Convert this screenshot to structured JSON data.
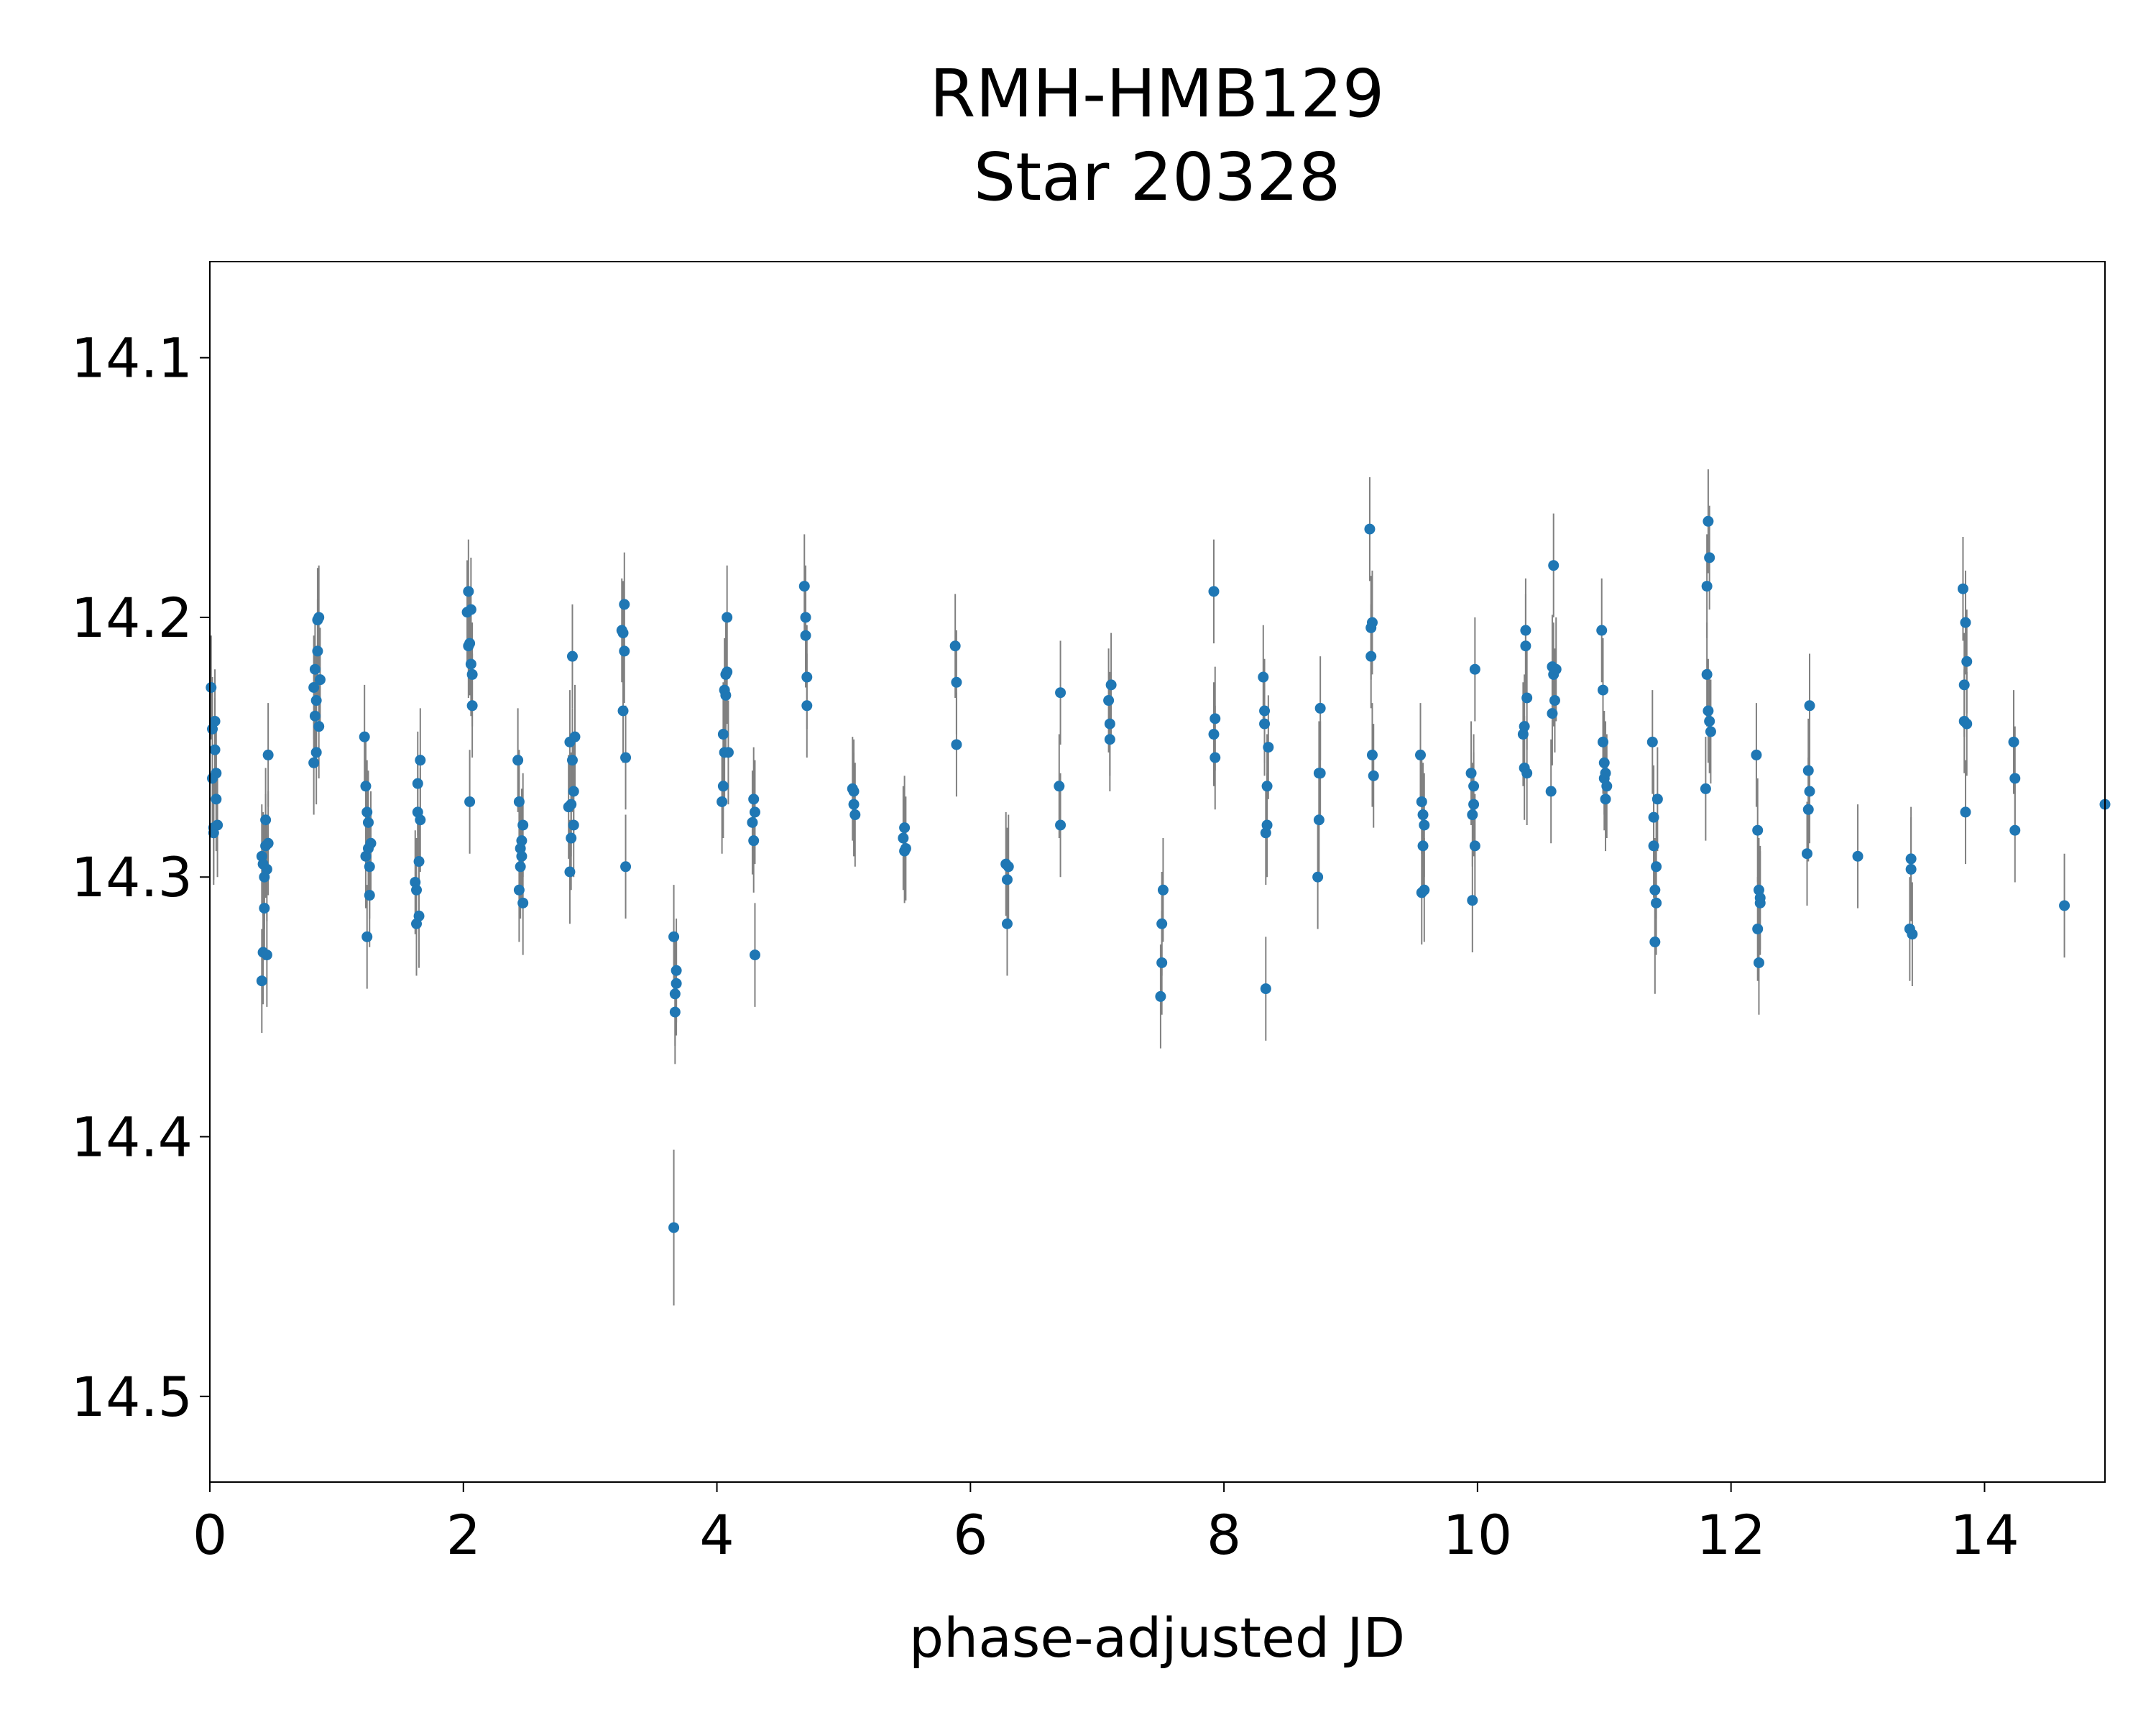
{
  "chart_data": {
    "type": "scatter",
    "title": [
      "RMH-HMB129",
      "Star 20328"
    ],
    "xlabel": "phase-adjusted JD",
    "ylabel": "",
    "xlim": [
      0,
      14.95
    ],
    "ylim": [
      14.533,
      14.063
    ],
    "y_inverted": true,
    "x_ticks": [
      0,
      2,
      4,
      6,
      8,
      10,
      12,
      14
    ],
    "x_tick_labels": [
      "0",
      "2",
      "4",
      "6",
      "8",
      "10",
      "12",
      "14"
    ],
    "y_ticks": [
      14.1,
      14.2,
      14.3,
      14.4,
      14.5
    ],
    "y_tick_labels": [
      "14.1",
      "14.2",
      "14.3",
      "14.4",
      "14.5"
    ],
    "grid": false,
    "legend": "none",
    "marker_color": "#1f77b4",
    "errorbar_color": "#808080",
    "points": [
      [
        0.01,
        14.227,
        0.02
      ],
      [
        0.02,
        14.243,
        0.02
      ],
      [
        0.02,
        14.262,
        0.02
      ],
      [
        0.03,
        14.283,
        0.02
      ],
      [
        0.03,
        14.281,
        0.02
      ],
      [
        0.04,
        14.24,
        0.02
      ],
      [
        0.04,
        14.251,
        0.02
      ],
      [
        0.05,
        14.26,
        0.02
      ],
      [
        0.05,
        14.27,
        0.02
      ],
      [
        0.06,
        14.28,
        0.02
      ],
      [
        0.41,
        14.34,
        0.02
      ],
      [
        0.41,
        14.292,
        0.02
      ],
      [
        0.42,
        14.295,
        0.02
      ],
      [
        0.42,
        14.329,
        0.02
      ],
      [
        0.43,
        14.3,
        0.02
      ],
      [
        0.43,
        14.312,
        0.02
      ],
      [
        0.44,
        14.278,
        0.02
      ],
      [
        0.44,
        14.288,
        0.02
      ],
      [
        0.45,
        14.33,
        0.02
      ],
      [
        0.45,
        14.297,
        0.02
      ],
      [
        0.46,
        14.287,
        0.02
      ],
      [
        0.46,
        14.253,
        0.02
      ],
      [
        0.82,
        14.227,
        0.02
      ],
      [
        0.82,
        14.256,
        0.02
      ],
      [
        0.83,
        14.22,
        0.02
      ],
      [
        0.83,
        14.238,
        0.02
      ],
      [
        0.84,
        14.252,
        0.02
      ],
      [
        0.84,
        14.232,
        0.02
      ],
      [
        0.85,
        14.213,
        0.02
      ],
      [
        0.85,
        14.201,
        0.02
      ],
      [
        0.86,
        14.2,
        0.02
      ],
      [
        0.86,
        14.242,
        0.02
      ],
      [
        0.87,
        14.224,
        0.02
      ],
      [
        1.22,
        14.246,
        0.02
      ],
      [
        1.23,
        14.265,
        0.02
      ],
      [
        1.23,
        14.292,
        0.02
      ],
      [
        1.24,
        14.323,
        0.02
      ],
      [
        1.24,
        14.275,
        0.02
      ],
      [
        1.25,
        14.279,
        0.02
      ],
      [
        1.25,
        14.289,
        0.02
      ],
      [
        1.26,
        14.307,
        0.02
      ],
      [
        1.26,
        14.296,
        0.02
      ],
      [
        1.27,
        14.287,
        0.02
      ],
      [
        1.62,
        14.302,
        0.02
      ],
      [
        1.63,
        14.318,
        0.02
      ],
      [
        1.63,
        14.305,
        0.02
      ],
      [
        1.64,
        14.264,
        0.02
      ],
      [
        1.64,
        14.275,
        0.02
      ],
      [
        1.65,
        14.294,
        0.02
      ],
      [
        1.65,
        14.315,
        0.02
      ],
      [
        1.66,
        14.278,
        0.02
      ],
      [
        1.66,
        14.255,
        0.02
      ],
      [
        2.03,
        14.198,
        0.02
      ],
      [
        2.04,
        14.19,
        0.02
      ],
      [
        2.04,
        14.211,
        0.02
      ],
      [
        2.05,
        14.271,
        0.02
      ],
      [
        2.05,
        14.21,
        0.02
      ],
      [
        2.06,
        14.197,
        0.02
      ],
      [
        2.06,
        14.218,
        0.02
      ],
      [
        2.07,
        14.222,
        0.02
      ],
      [
        2.07,
        14.234,
        0.02
      ],
      [
        2.43,
        14.255,
        0.02
      ],
      [
        2.44,
        14.271,
        0.02
      ],
      [
        2.44,
        14.305,
        0.02
      ],
      [
        2.45,
        14.296,
        0.02
      ],
      [
        2.45,
        14.289,
        0.02
      ],
      [
        2.46,
        14.286,
        0.02
      ],
      [
        2.46,
        14.292,
        0.02
      ],
      [
        2.47,
        14.31,
        0.02
      ],
      [
        2.47,
        14.28,
        0.02
      ],
      [
        2.83,
        14.273,
        0.02
      ],
      [
        2.84,
        14.298,
        0.02
      ],
      [
        2.84,
        14.248,
        0.02
      ],
      [
        2.85,
        14.285,
        0.02
      ],
      [
        2.85,
        14.272,
        0.02
      ],
      [
        2.86,
        14.255,
        0.02
      ],
      [
        2.86,
        14.215,
        0.02
      ],
      [
        2.87,
        14.28,
        0.02
      ],
      [
        2.87,
        14.267,
        0.02
      ],
      [
        2.88,
        14.246,
        0.02
      ],
      [
        3.25,
        14.205,
        0.02
      ],
      [
        3.26,
        14.236,
        0.02
      ],
      [
        3.26,
        14.206,
        0.02
      ],
      [
        3.27,
        14.195,
        0.02
      ],
      [
        3.27,
        14.213,
        0.02
      ],
      [
        3.28,
        14.296,
        0.02
      ],
      [
        3.28,
        14.254,
        0.02
      ],
      [
        3.66,
        14.323,
        0.02
      ],
      [
        3.67,
        14.345,
        0.02
      ],
      [
        3.67,
        14.352,
        0.02
      ],
      [
        3.68,
        14.336,
        0.02
      ],
      [
        3.68,
        14.341,
        0.02
      ],
      [
        3.66,
        14.435,
        0.03
      ],
      [
        4.04,
        14.271,
        0.02
      ],
      [
        4.05,
        14.245,
        0.02
      ],
      [
        4.05,
        14.265,
        0.02
      ],
      [
        4.06,
        14.252,
        0.02
      ],
      [
        4.06,
        14.228,
        0.02
      ],
      [
        4.07,
        14.23,
        0.02
      ],
      [
        4.07,
        14.222,
        0.02
      ],
      [
        4.08,
        14.2,
        0.02
      ],
      [
        4.08,
        14.221,
        0.02
      ],
      [
        4.09,
        14.252,
        0.02
      ],
      [
        4.28,
        14.279,
        0.02
      ],
      [
        4.29,
        14.286,
        0.02
      ],
      [
        4.29,
        14.27,
        0.02
      ],
      [
        4.3,
        14.33,
        0.02
      ],
      [
        4.3,
        14.275,
        0.02
      ],
      [
        4.69,
        14.188,
        0.02
      ],
      [
        4.7,
        14.2,
        0.02
      ],
      [
        4.7,
        14.207,
        0.02
      ],
      [
        4.71,
        14.223,
        0.02
      ],
      [
        4.71,
        14.234,
        0.02
      ],
      [
        5.07,
        14.266,
        0.02
      ],
      [
        5.08,
        14.272,
        0.02
      ],
      [
        5.08,
        14.267,
        0.02
      ],
      [
        5.09,
        14.276,
        0.02
      ],
      [
        5.47,
        14.285,
        0.02
      ],
      [
        5.48,
        14.29,
        0.02
      ],
      [
        5.48,
        14.281,
        0.02
      ],
      [
        5.49,
        14.289,
        0.02
      ],
      [
        5.88,
        14.211,
        0.02
      ],
      [
        5.89,
        14.249,
        0.02
      ],
      [
        5.89,
        14.225,
        0.02
      ],
      [
        6.28,
        14.295,
        0.02
      ],
      [
        6.29,
        14.301,
        0.02
      ],
      [
        6.29,
        14.318,
        0.02
      ],
      [
        6.3,
        14.296,
        0.02
      ],
      [
        6.7,
        14.265,
        0.02
      ],
      [
        6.71,
        14.229,
        0.02
      ],
      [
        6.71,
        14.28,
        0.02
      ],
      [
        7.09,
        14.232,
        0.02
      ],
      [
        7.1,
        14.247,
        0.02
      ],
      [
        7.1,
        14.241,
        0.02
      ],
      [
        7.11,
        14.226,
        0.02
      ],
      [
        7.5,
        14.346,
        0.02
      ],
      [
        7.51,
        14.318,
        0.02
      ],
      [
        7.51,
        14.333,
        0.02
      ],
      [
        7.52,
        14.305,
        0.02
      ],
      [
        7.92,
        14.19,
        0.02
      ],
      [
        7.92,
        14.245,
        0.02
      ],
      [
        7.93,
        14.254,
        0.02
      ],
      [
        7.93,
        14.239,
        0.02
      ],
      [
        8.31,
        14.223,
        0.02
      ],
      [
        8.32,
        14.236,
        0.02
      ],
      [
        8.32,
        14.241,
        0.02
      ],
      [
        8.33,
        14.343,
        0.02
      ],
      [
        8.33,
        14.283,
        0.02
      ],
      [
        8.34,
        14.265,
        0.02
      ],
      [
        8.34,
        14.28,
        0.02
      ],
      [
        8.35,
        14.25,
        0.02
      ],
      [
        8.74,
        14.3,
        0.02
      ],
      [
        8.75,
        14.26,
        0.02
      ],
      [
        8.75,
        14.278,
        0.02
      ],
      [
        8.76,
        14.235,
        0.02
      ],
      [
        8.76,
        14.26,
        0.02
      ],
      [
        9.15,
        14.166,
        0.02
      ],
      [
        9.16,
        14.204,
        0.02
      ],
      [
        9.16,
        14.215,
        0.02
      ],
      [
        9.17,
        14.202,
        0.02
      ],
      [
        9.17,
        14.253,
        0.02
      ],
      [
        9.18,
        14.261,
        0.02
      ],
      [
        9.55,
        14.253,
        0.02
      ],
      [
        9.56,
        14.306,
        0.02
      ],
      [
        9.56,
        14.271,
        0.02
      ],
      [
        9.57,
        14.276,
        0.02
      ],
      [
        9.57,
        14.288,
        0.02
      ],
      [
        9.58,
        14.28,
        0.02
      ],
      [
        9.58,
        14.305,
        0.02
      ],
      [
        9.95,
        14.26,
        0.02
      ],
      [
        9.96,
        14.276,
        0.02
      ],
      [
        9.96,
        14.309,
        0.02
      ],
      [
        9.97,
        14.265,
        0.02
      ],
      [
        9.97,
        14.272,
        0.02
      ],
      [
        9.98,
        14.22,
        0.02
      ],
      [
        9.98,
        14.288,
        0.02
      ],
      [
        10.36,
        14.245,
        0.02
      ],
      [
        10.37,
        14.258,
        0.02
      ],
      [
        10.37,
        14.242,
        0.02
      ],
      [
        10.38,
        14.205,
        0.02
      ],
      [
        10.38,
        14.211,
        0.02
      ],
      [
        10.39,
        14.231,
        0.02
      ],
      [
        10.39,
        14.26,
        0.02
      ],
      [
        10.58,
        14.267,
        0.02
      ],
      [
        10.59,
        14.219,
        0.02
      ],
      [
        10.59,
        14.237,
        0.02
      ],
      [
        10.6,
        14.18,
        0.02
      ],
      [
        10.6,
        14.222,
        0.02
      ],
      [
        10.61,
        14.232,
        0.02
      ],
      [
        10.62,
        14.22,
        0.02
      ],
      [
        10.98,
        14.205,
        0.02
      ],
      [
        10.99,
        14.228,
        0.02
      ],
      [
        10.99,
        14.248,
        0.02
      ],
      [
        11.0,
        14.256,
        0.02
      ],
      [
        11.0,
        14.262,
        0.02
      ],
      [
        11.01,
        14.27,
        0.02
      ],
      [
        11.01,
        14.26,
        0.02
      ],
      [
        11.02,
        14.265,
        0.02
      ],
      [
        11.38,
        14.248,
        0.02
      ],
      [
        11.39,
        14.277,
        0.02
      ],
      [
        11.39,
        14.288,
        0.02
      ],
      [
        11.4,
        14.305,
        0.02
      ],
      [
        11.4,
        14.325,
        0.02
      ],
      [
        11.41,
        14.31,
        0.02
      ],
      [
        11.41,
        14.296,
        0.02
      ],
      [
        11.42,
        14.27,
        0.02
      ],
      [
        11.8,
        14.266,
        0.02
      ],
      [
        11.81,
        14.222,
        0.02
      ],
      [
        11.81,
        14.188,
        0.02
      ],
      [
        11.82,
        14.163,
        0.02
      ],
      [
        11.82,
        14.236,
        0.02
      ],
      [
        11.83,
        14.177,
        0.02
      ],
      [
        11.83,
        14.24,
        0.02
      ],
      [
        11.84,
        14.244,
        0.02
      ],
      [
        12.2,
        14.253,
        0.02
      ],
      [
        12.21,
        14.282,
        0.02
      ],
      [
        12.21,
        14.32,
        0.02
      ],
      [
        12.22,
        14.333,
        0.02
      ],
      [
        12.22,
        14.305,
        0.02
      ],
      [
        12.23,
        14.31,
        0.02
      ],
      [
        12.23,
        14.308,
        0.02
      ],
      [
        12.6,
        14.291,
        0.02
      ],
      [
        12.61,
        14.259,
        0.02
      ],
      [
        12.61,
        14.274,
        0.02
      ],
      [
        12.62,
        14.234,
        0.02
      ],
      [
        12.62,
        14.267,
        0.02
      ],
      [
        13.0,
        14.292,
        0.02
      ],
      [
        13.41,
        14.32,
        0.02
      ],
      [
        13.42,
        14.297,
        0.02
      ],
      [
        13.42,
        14.293,
        0.02
      ],
      [
        13.43,
        14.322,
        0.02
      ],
      [
        13.83,
        14.189,
        0.02
      ],
      [
        13.84,
        14.226,
        0.02
      ],
      [
        13.84,
        14.24,
        0.02
      ],
      [
        13.85,
        14.275,
        0.02
      ],
      [
        13.85,
        14.202,
        0.02
      ],
      [
        13.86,
        14.217,
        0.02
      ],
      [
        13.86,
        14.241,
        0.02
      ],
      [
        14.23,
        14.248,
        0.02
      ],
      [
        14.24,
        14.282,
        0.02
      ],
      [
        14.24,
        14.262,
        0.02
      ],
      [
        14.63,
        14.311,
        0.02
      ],
      [
        14.95,
        14.272,
        0.02
      ]
    ]
  }
}
